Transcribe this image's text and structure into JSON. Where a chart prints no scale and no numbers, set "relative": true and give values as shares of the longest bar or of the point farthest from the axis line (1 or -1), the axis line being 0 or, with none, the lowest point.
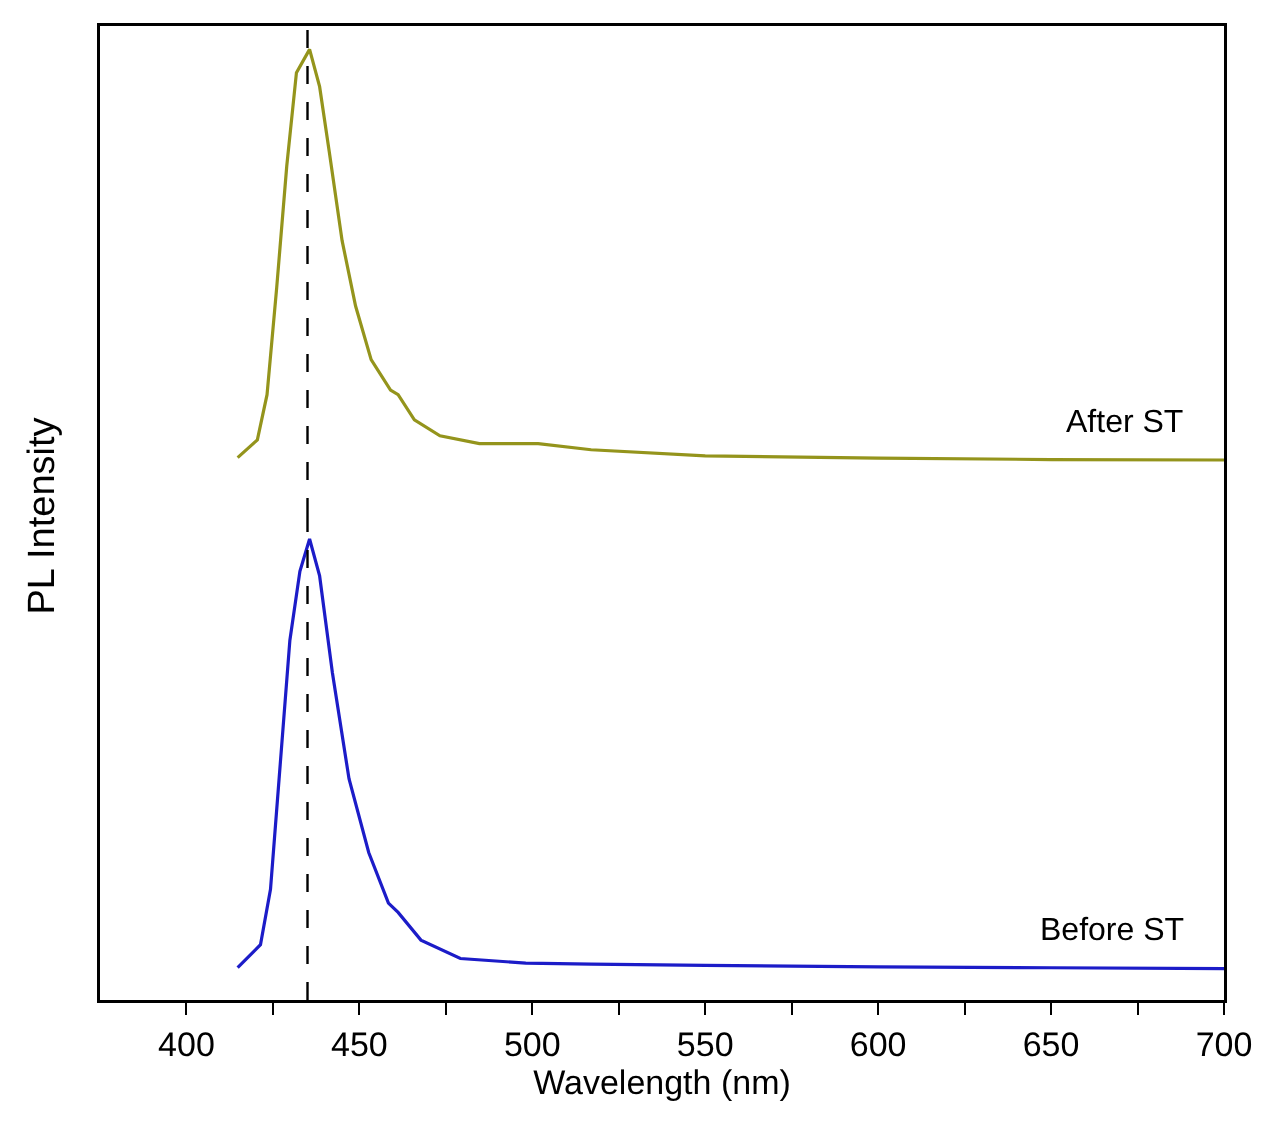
{
  "chart_data": [
    {
      "type": "line",
      "ylabel": "PL Intensity",
      "relative": true,
      "xlim": [
        375,
        700
      ],
      "tick_labels": false,
      "legend": false,
      "grid": false,
      "series": [
        {
          "name": "After ST",
          "color": "#94941c",
          "x": [
            414.8,
            420.5,
            423.3,
            426.1,
            429,
            431.8,
            435.6,
            438.5,
            441.3,
            445,
            448.9,
            453.4,
            459,
            461.2,
            465.9,
            473.3,
            484.7,
            501.7,
            517,
            550,
            600,
            650,
            700
          ],
          "values": [
            0.125,
            0.163,
            0.26,
            0.49,
            0.75,
            0.95,
            1,
            0.92,
            0.78,
            0.59,
            0.45,
            0.335,
            0.27,
            0.26,
            0.206,
            0.172,
            0.155,
            0.155,
            0.142,
            0.129,
            0.124,
            0.121,
            0.12
          ]
        }
      ],
      "ref_lines": [
        {
          "axis": "x",
          "value": 435,
          "color": "#000000",
          "line_style": "dashed"
        }
      ]
    },
    {
      "type": "line",
      "xlabel": "Wavelength (nm)",
      "relative": true,
      "xlim": [
        375,
        700
      ],
      "tick_labels": "x",
      "legend": false,
      "grid": false,
      "xticks": [
        400,
        {
          "value": 425,
          "label": null
        },
        450,
        {
          "value": 475,
          "label": null
        },
        500,
        {
          "value": 525,
          "label": null
        },
        550,
        {
          "value": 575,
          "label": null
        },
        600,
        {
          "value": 625,
          "label": null
        },
        650,
        {
          "value": 675,
          "label": null
        },
        700
      ],
      "series": [
        {
          "name": "Before ST",
          "color": "#1c1cc8",
          "x": [
            414.8,
            421.4,
            424.3,
            427.1,
            429.9,
            432.8,
            435.6,
            438.5,
            442.2,
            447,
            452.7,
            458.4,
            461.2,
            467.8,
            479.2,
            498.1,
            517,
            550,
            600,
            650,
            700
          ],
          "values": [
            0.07,
            0.12,
            0.24,
            0.51,
            0.78,
            0.93,
            1,
            0.92,
            0.71,
            0.48,
            0.32,
            0.21,
            0.19,
            0.13,
            0.09,
            0.08,
            0.078,
            0.075,
            0.072,
            0.07,
            0.068
          ]
        }
      ],
      "ref_lines": [
        {
          "axis": "x",
          "value": 435,
          "color": "#000000",
          "line_style": "dashed"
        }
      ]
    }
  ]
}
